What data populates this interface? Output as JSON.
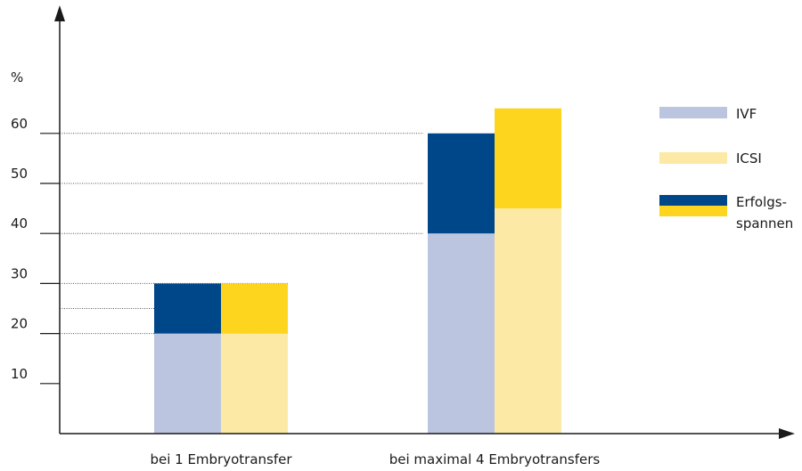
{
  "chart_data": {
    "type": "bar",
    "ylabel": "%",
    "ylim": [
      0,
      80
    ],
    "yticks": [
      10,
      20,
      30,
      40,
      50,
      60
    ],
    "categories": [
      "bei 1 Embryotransfer",
      "bei maximal 4 Embryotransfers"
    ],
    "series": [
      {
        "name": "IVF",
        "values": [
          20,
          40
        ],
        "range_top": [
          30,
          60
        ]
      },
      {
        "name": "ICSI",
        "values": [
          20,
          45
        ],
        "range_top": [
          30,
          65
        ]
      }
    ],
    "reference_lines": [
      20,
      25,
      30,
      40,
      50,
      60
    ],
    "legend": {
      "placement": "right",
      "items": [
        {
          "label": "IVF"
        },
        {
          "label": "ICSI"
        },
        {
          "label_line1": "Erfolgs-",
          "label_line2": "spannen"
        }
      ]
    },
    "colors": {
      "ivf_base": "#bcc5df",
      "ivf_range": "#00478a",
      "icsi_base": "#fde9a6",
      "icsi_range": "#fdd51f",
      "axis": "#1a1a1a",
      "grid": "#555555"
    }
  }
}
